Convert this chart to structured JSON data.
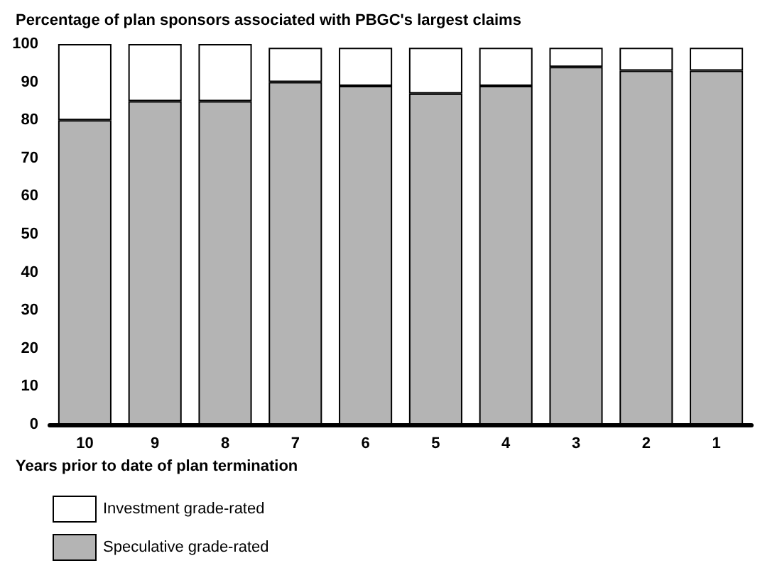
{
  "chart_data": {
    "type": "bar",
    "title": "Percentage of plan sponsors associated with PBGC's largest claims",
    "xlabel": "Years prior to date of plan termination",
    "categories": [
      "10",
      "9",
      "8",
      "7",
      "6",
      "5",
      "4",
      "3",
      "2",
      "1"
    ],
    "stacked": true,
    "series": [
      {
        "name": "Speculative grade-rated",
        "color": "#b4b4b4",
        "values": [
          80,
          85,
          85,
          90,
          89,
          87,
          89,
          94,
          93,
          93
        ]
      },
      {
        "name": "Investment grade-rated",
        "color": "#ffffff",
        "values": [
          20,
          15,
          15,
          9,
          10,
          12,
          10,
          5,
          6,
          6
        ]
      }
    ],
    "ylim": [
      0,
      100
    ],
    "yticks": [
      0,
      10,
      20,
      30,
      40,
      50,
      60,
      70,
      80,
      90,
      100
    ],
    "grid": false,
    "legend": "bottom left"
  }
}
